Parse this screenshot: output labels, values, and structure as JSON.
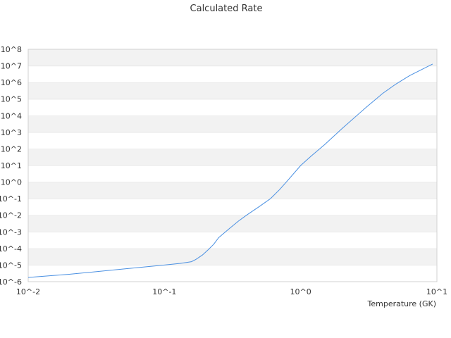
{
  "chart_data": {
    "type": "line",
    "title": "Calculated Rate",
    "xlabel": "Temperature (GK)",
    "ylabel": "",
    "x_scale": "log",
    "y_scale": "log",
    "xlim": [
      0.01,
      10
    ],
    "ylim": [
      1e-06,
      100000000.0
    ],
    "grid": "alternating horizontal bands",
    "legend": "none",
    "x_ticks": [
      {
        "value": 0.01,
        "label": "10^-2"
      },
      {
        "value": 0.1,
        "label": "10^-1"
      },
      {
        "value": 1,
        "label": "10^0"
      },
      {
        "value": 10,
        "label": "10^1"
      }
    ],
    "y_ticks": [
      {
        "value": 1e-06,
        "label": "10^-6"
      },
      {
        "value": 1e-05,
        "label": "10^-5"
      },
      {
        "value": 0.0001,
        "label": "10^-4"
      },
      {
        "value": 0.001,
        "label": "10^-3"
      },
      {
        "value": 0.01,
        "label": "10^-2"
      },
      {
        "value": 0.1,
        "label": "10^-1"
      },
      {
        "value": 1.0,
        "label": "10^0"
      },
      {
        "value": 10.0,
        "label": "10^1"
      },
      {
        "value": 100.0,
        "label": "10^2"
      },
      {
        "value": 1000.0,
        "label": "10^3"
      },
      {
        "value": 10000.0,
        "label": "10^4"
      },
      {
        "value": 100000.0,
        "label": "10^5"
      },
      {
        "value": 1000000.0,
        "label": "10^6"
      },
      {
        "value": 10000000.0,
        "label": "10^7"
      },
      {
        "value": 100000000.0,
        "label": "10^8"
      }
    ],
    "series": [
      {
        "color": "#4a90e2",
        "x": [
          0.01,
          0.02,
          0.05,
          0.1,
          0.13,
          0.158,
          0.17,
          0.19,
          0.21,
          0.23,
          0.25,
          0.3,
          0.35,
          0.4,
          0.5,
          0.6,
          0.7,
          0.8,
          1.0,
          1.2,
          1.5,
          2.0,
          3.0,
          4.0,
          5.0,
          6.3,
          9.3
        ],
        "y": [
          1.8e-06,
          2.8e-06,
          5.8e-06,
          1e-05,
          1.25e-05,
          1.6e-05,
          2.2e-05,
          4e-05,
          8.5e-05,
          0.00018,
          0.00045,
          0.0016,
          0.0045,
          0.01,
          0.035,
          0.1,
          0.35,
          1.2,
          10.0,
          38.0,
          180.0,
          1600.0,
          30000.0,
          220000.0,
          800000.0,
          2600000.0,
          13000000.0
        ]
      }
    ]
  }
}
